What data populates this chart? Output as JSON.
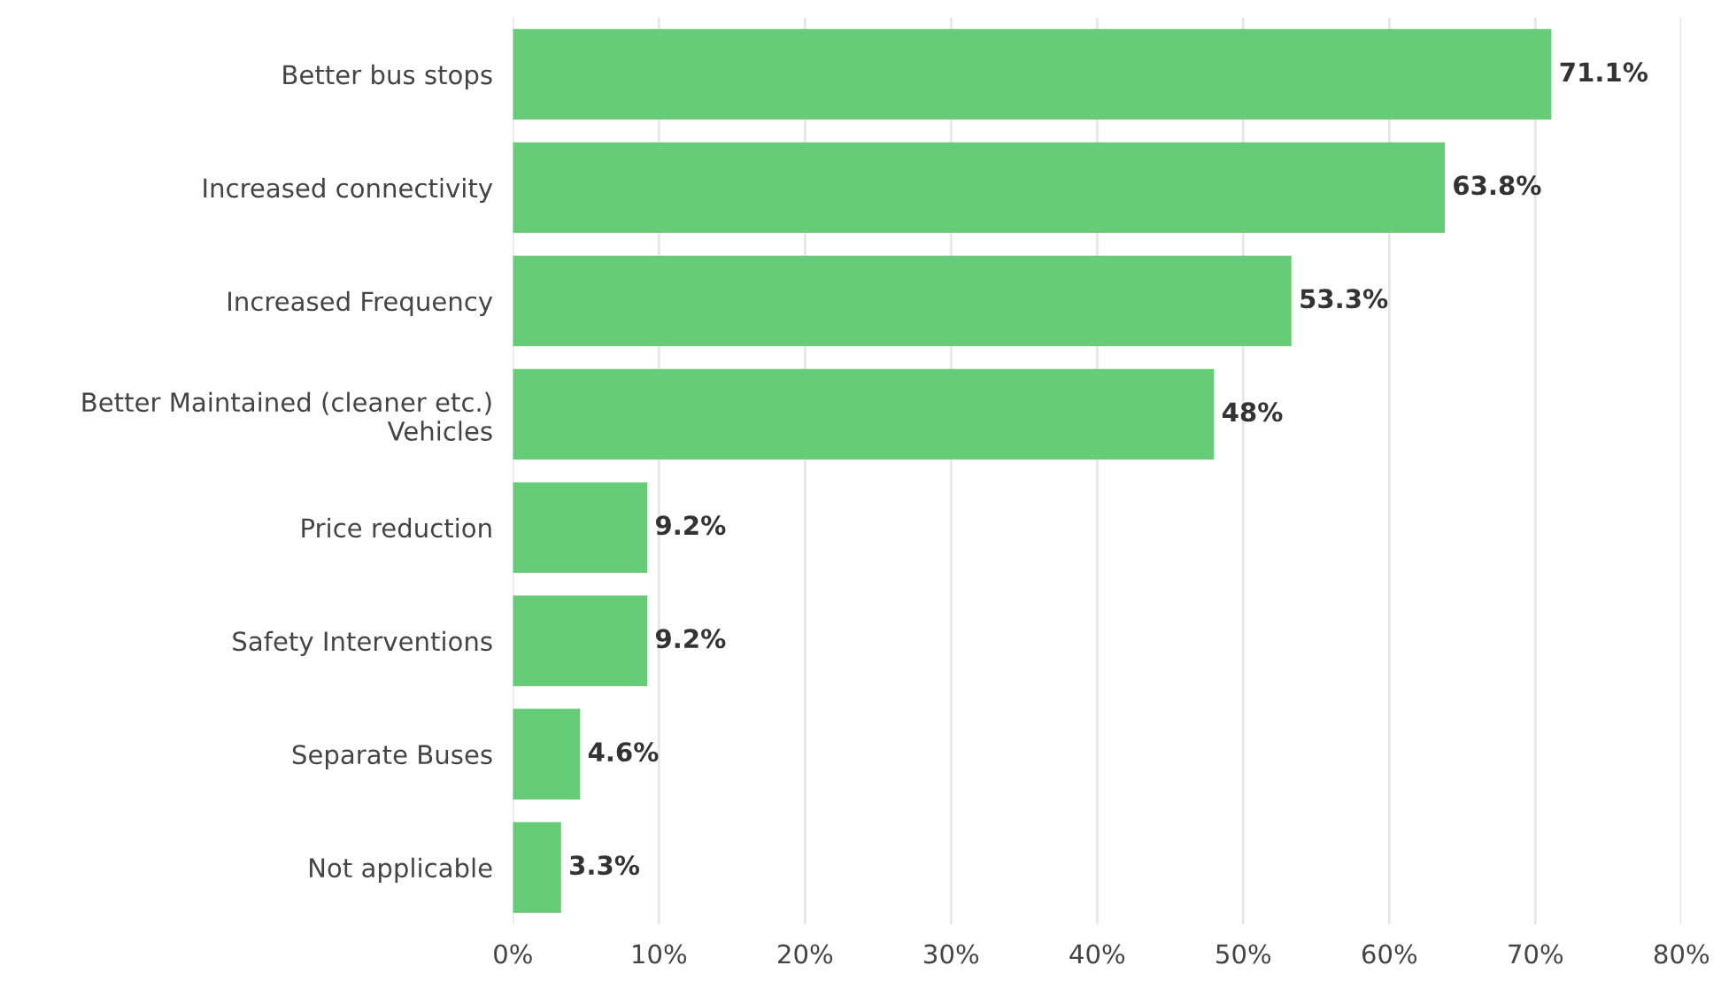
{
  "chart_data": {
    "type": "bar",
    "orientation": "horizontal",
    "categories": [
      "Better bus stops",
      "Increased connectivity",
      "Increased Frequency",
      "Better Maintained (cleaner etc.)\nVehicles",
      "Price reduction",
      "Safety Interventions",
      "Separate Buses",
      "Not applicable"
    ],
    "values": [
      71.1,
      63.8,
      53.3,
      48,
      9.2,
      9.2,
      4.6,
      3.3
    ],
    "value_labels": [
      "71.1%",
      "63.8%",
      "53.3%",
      "48%",
      "9.2%",
      "9.2%",
      "4.6%",
      "3.3%"
    ],
    "color": "#66cc77",
    "xlim": [
      0,
      80
    ],
    "xticks": [
      {
        "value": 0,
        "label": "0%"
      },
      {
        "value": 10,
        "label": "10%"
      },
      {
        "value": 20,
        "label": "20%"
      },
      {
        "value": 30,
        "label": "30%"
      },
      {
        "value": 40,
        "label": "40%"
      },
      {
        "value": 50,
        "label": "50%"
      },
      {
        "value": 60,
        "label": "60%"
      },
      {
        "value": 70,
        "label": "70%"
      },
      {
        "value": 80,
        "label": "80%"
      }
    ],
    "grid": "x",
    "legend": false
  }
}
